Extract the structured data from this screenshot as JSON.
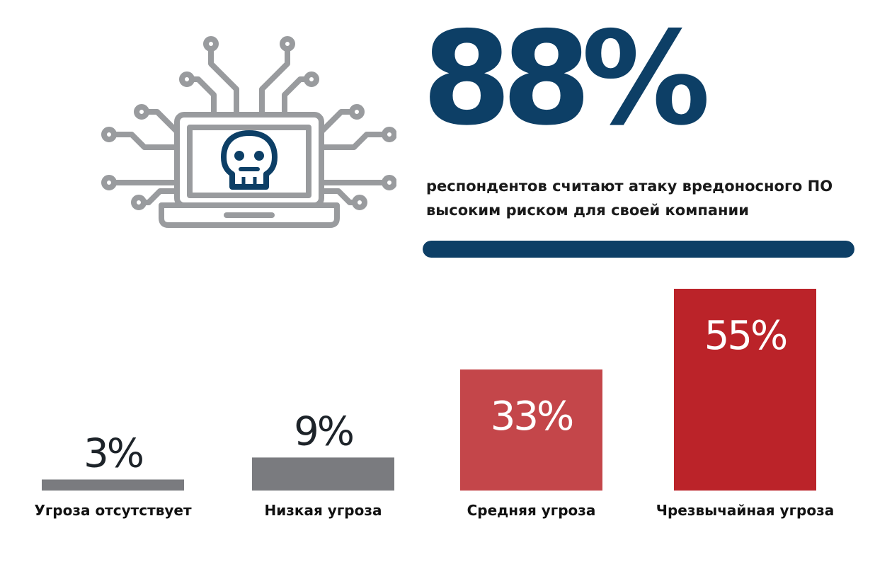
{
  "headline": {
    "value": "88%",
    "description_lines": [
      "респондентов считают атаку вредоносного ПО",
      "высоким риском для своей компании"
    ],
    "progress_fraction": 1.0,
    "color": "#0d3f66"
  },
  "illustration": {
    "icon": "laptop-skull-circuit-icon",
    "line_color": "#999b9e",
    "skull_color": "#0d3f66"
  },
  "chart_data": {
    "type": "bar",
    "categories": [
      "Угроза отсутствует",
      "Низкая угроза",
      "Средняя угроза",
      "Чрезвычайная угроза"
    ],
    "values": [
      3,
      9,
      33,
      55
    ],
    "value_labels": [
      "3%",
      "9%",
      "33%",
      "55%"
    ],
    "colors": [
      "#7a7b7f",
      "#7a7b7f",
      "#c4464a",
      "#bb2329"
    ],
    "unit": "%",
    "ylim": [
      0,
      55
    ],
    "grid": false,
    "legend": "none"
  }
}
